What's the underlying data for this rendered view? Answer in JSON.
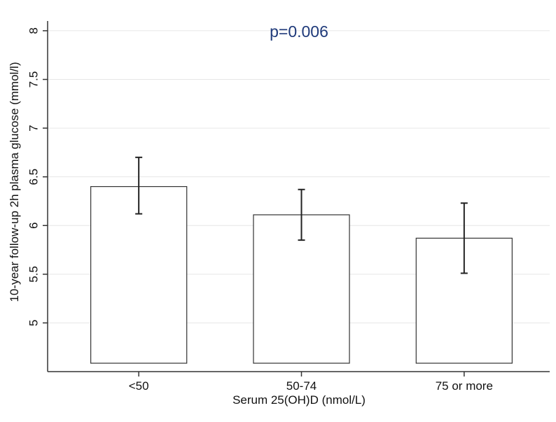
{
  "chart_data": {
    "type": "bar",
    "title": "",
    "annotation": "p=0.006",
    "xlabel": "Serum 25(OH)D (nmol/L)",
    "ylabel": "10-year follow-up 2h plasma glucose (mmol/l)",
    "categories": [
      "<50",
      "50-74",
      "75 or more"
    ],
    "values": [
      6.4,
      6.11,
      5.87
    ],
    "error_low": [
      6.12,
      5.85,
      5.51
    ],
    "error_high": [
      6.7,
      6.37,
      6.23
    ],
    "ylim": [
      4.5,
      8.1
    ],
    "yticks": [
      5,
      5.5,
      6,
      6.5,
      7,
      7.5,
      8
    ],
    "ytick_labels": [
      "5",
      "5.5",
      "6",
      "6.5",
      "7",
      "7.5",
      "8"
    ],
    "grid": true,
    "legend": "none",
    "colors": {
      "bar_fill": "#ffffff",
      "bar_stroke": "#333333",
      "grid": "#e6e6e6",
      "annotation": "#1f3a7a"
    }
  }
}
